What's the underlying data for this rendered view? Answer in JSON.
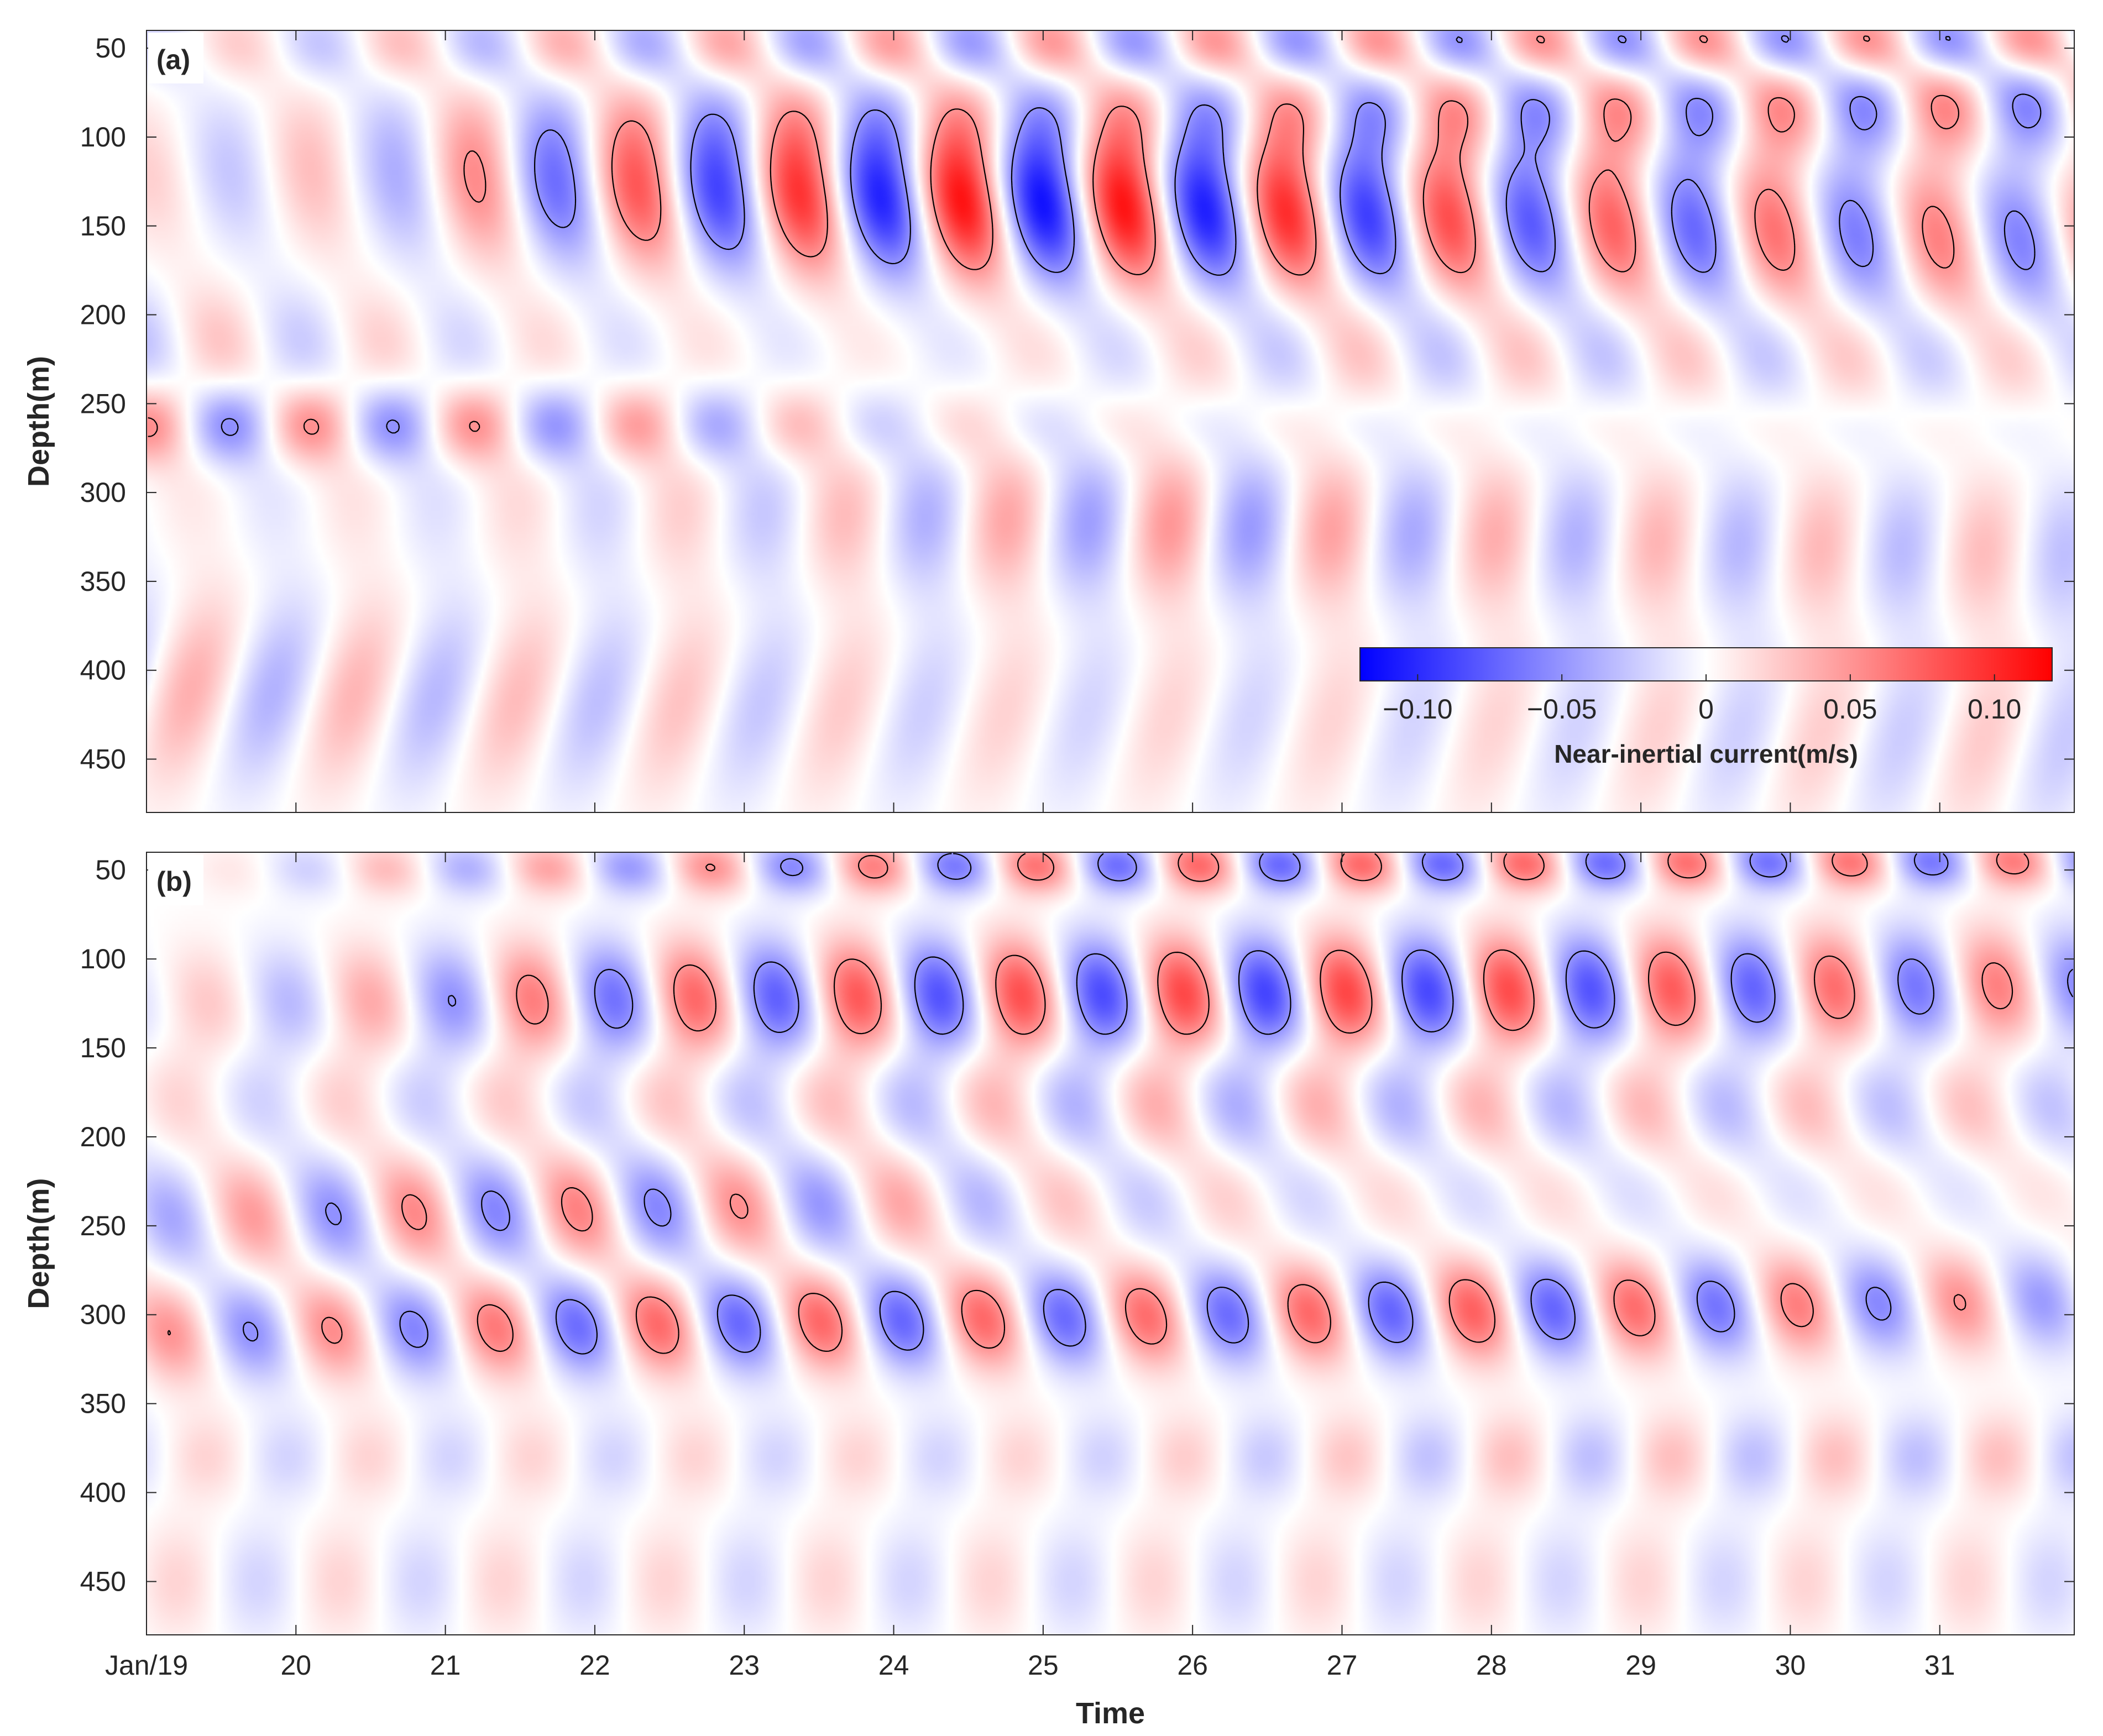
{
  "chart_data": {
    "type": "heatmap",
    "shared": {
      "xlabel": "Time",
      "ylabel": "Depth(m)",
      "x_ticks": [
        {
          "day": 19,
          "label": "Jan/19"
        },
        {
          "day": 20,
          "label": "20"
        },
        {
          "day": 21,
          "label": "21"
        },
        {
          "day": 22,
          "label": "22"
        },
        {
          "day": 23,
          "label": "23"
        },
        {
          "day": 24,
          "label": "24"
        },
        {
          "day": 25,
          "label": "25"
        },
        {
          "day": 26,
          "label": "26"
        },
        {
          "day": 27,
          "label": "27"
        },
        {
          "day": 28,
          "label": "28"
        },
        {
          "day": 29,
          "label": "29"
        },
        {
          "day": 30,
          "label": "30"
        },
        {
          "day": 31,
          "label": "31"
        }
      ],
      "xlim": [
        19,
        31.9
      ],
      "y_ticks": [
        50,
        100,
        150,
        200,
        250,
        300,
        350,
        400,
        450
      ],
      "ylim": [
        40,
        480
      ],
      "y_reversed": true
    },
    "colorbar": {
      "label": "Near-inertial current(m/s)",
      "range": [
        -0.12,
        0.12
      ],
      "ticks": [
        {
          "value": -0.1,
          "label": "−0.10"
        },
        {
          "value": -0.05,
          "label": "−0.05"
        },
        {
          "value": 0,
          "label": "0"
        },
        {
          "value": 0.05,
          "label": "0.05"
        },
        {
          "value": 0.1,
          "label": "0.10"
        }
      ],
      "colors": {
        "negative": "#0000ff",
        "zero": "#ffffff",
        "positive": "#ff0000"
      },
      "placement": "inside panel (a), lower-right"
    },
    "contours": {
      "levels": [
        -0.05,
        0.05
      ],
      "negative_style": "dashed",
      "positive_style": "solid",
      "color": "#000000"
    },
    "panels": [
      {
        "label": "(a)",
        "bands": [
          {
            "depth_start": 120,
            "depth_end": 160,
            "period_days": 1.09,
            "phase_day": 19.0,
            "tilt_days_per_m": 0.0022,
            "thickness_m": 60,
            "amplitudes": [
              {
                "day": 19,
                "value": 0.022
              },
              {
                "day": 20.5,
                "value": 0.03
              },
              {
                "day": 21.5,
                "value": 0.06
              },
              {
                "day": 22.5,
                "value": 0.08
              },
              {
                "day": 23.5,
                "value": 0.095
              },
              {
                "day": 24.5,
                "value": 0.11
              },
              {
                "day": 25.5,
                "value": 0.11
              },
              {
                "day": 26.5,
                "value": 0.1
              },
              {
                "day": 27.5,
                "value": 0.085
              },
              {
                "day": 28.5,
                "value": 0.075
              },
              {
                "day": 29.5,
                "value": 0.07
              },
              {
                "day": 30.5,
                "value": 0.06
              },
              {
                "day": 31.9,
                "value": 0.058
              }
            ]
          },
          {
            "depth_start": 95,
            "depth_end": 80,
            "period_days": 1.09,
            "phase_day": 19.05,
            "tilt_days_per_m": 0.002,
            "thickness_m": 42,
            "amplitudes": [
              {
                "day": 19,
                "value": 0.0
              },
              {
                "day": 20.5,
                "value": 0.01
              },
              {
                "day": 22,
                "value": 0.02
              },
              {
                "day": 23,
                "value": 0.03
              },
              {
                "day": 24.5,
                "value": 0.035
              },
              {
                "day": 26,
                "value": 0.045
              },
              {
                "day": 28,
                "value": 0.055
              },
              {
                "day": 30,
                "value": 0.058
              },
              {
                "day": 31.9,
                "value": 0.062
              }
            ]
          },
          {
            "depth_start": 48,
            "depth_end": 48,
            "period_days": 1.09,
            "phase_day": 19.6,
            "tilt_days_per_m": 0.002,
            "thickness_m": 30,
            "amplitudes": [
              {
                "day": 19,
                "value": 0.02
              },
              {
                "day": 22,
                "value": 0.04
              },
              {
                "day": 24,
                "value": 0.05
              },
              {
                "day": 28,
                "value": 0.06
              },
              {
                "day": 31.9,
                "value": 0.065
              }
            ]
          },
          {
            "depth_start": 262,
            "depth_end": 262,
            "period_days": 1.09,
            "phase_day": 19.0,
            "tilt_days_per_m": 0.0,
            "thickness_m": 32,
            "amplitudes": [
              {
                "day": 19,
                "value": 0.058
              },
              {
                "day": 21.5,
                "value": 0.055
              },
              {
                "day": 22.6,
                "value": 0.048
              },
              {
                "day": 24,
                "value": 0.025
              },
              {
                "day": 26,
                "value": 0.015
              },
              {
                "day": 31.9,
                "value": 0.01
              }
            ]
          },
          {
            "depth_start": 300,
            "depth_end": 335,
            "period_days": 1.09,
            "phase_day": 19.3,
            "tilt_days_per_m": -0.001,
            "thickness_m": 60,
            "amplitudes": [
              {
                "day": 19,
                "value": 0.01
              },
              {
                "day": 21,
                "value": 0.015
              },
              {
                "day": 23,
                "value": 0.025
              },
              {
                "day": 24.5,
                "value": 0.04
              },
              {
                "day": 26,
                "value": 0.05
              },
              {
                "day": 27.5,
                "value": 0.04
              },
              {
                "day": 29,
                "value": 0.035
              },
              {
                "day": 31.9,
                "value": 0.03
              }
            ]
          },
          {
            "depth_start": 215,
            "depth_end": 225,
            "period_days": 1.09,
            "phase_day": 19.5,
            "tilt_days_per_m": 0.002,
            "thickness_m": 45,
            "amplitudes": [
              {
                "day": 19,
                "value": 0.03
              },
              {
                "day": 21,
                "value": 0.02
              },
              {
                "day": 24,
                "value": 0.01
              },
              {
                "day": 27,
                "value": 0.03
              },
              {
                "day": 29,
                "value": 0.03
              },
              {
                "day": 31.9,
                "value": 0.025
              }
            ]
          },
          {
            "depth_start": 410,
            "depth_end": 440,
            "period_days": 1.09,
            "phase_day": 19.3,
            "tilt_days_per_m": -0.003,
            "thickness_m": 75,
            "amplitudes": [
              {
                "day": 19,
                "value": 0.038
              },
              {
                "day": 22,
                "value": 0.03
              },
              {
                "day": 25,
                "value": 0.02
              },
              {
                "day": 28,
                "value": 0.02
              },
              {
                "day": 31.9,
                "value": 0.025
              }
            ]
          }
        ]
      },
      {
        "label": "(b)",
        "bands": [
          {
            "depth_start": 50,
            "depth_end": 45,
            "period_days": 1.09,
            "phase_day": 19.5,
            "tilt_days_per_m": 0.002,
            "thickness_m": 22,
            "amplitudes": [
              {
                "day": 19,
                "value": 0.0
              },
              {
                "day": 20.5,
                "value": 0.03
              },
              {
                "day": 22,
                "value": 0.045
              },
              {
                "day": 24,
                "value": 0.06
              },
              {
                "day": 26,
                "value": 0.07
              },
              {
                "day": 28,
                "value": 0.07
              },
              {
                "day": 31.9,
                "value": 0.06
              }
            ]
          },
          {
            "depth_start": 125,
            "depth_end": 115,
            "period_days": 1.09,
            "phase_day": 19.4,
            "tilt_days_per_m": 0.002,
            "thickness_m": 45,
            "amplitudes": [
              {
                "day": 19,
                "value": 0.02
              },
              {
                "day": 20.5,
                "value": 0.04
              },
              {
                "day": 21.5,
                "value": 0.06
              },
              {
                "day": 22.5,
                "value": 0.07
              },
              {
                "day": 24,
                "value": 0.08
              },
              {
                "day": 26.5,
                "value": 0.088
              },
              {
                "day": 28,
                "value": 0.085
              },
              {
                "day": 29.5,
                "value": 0.075
              },
              {
                "day": 31.9,
                "value": 0.055
              }
            ]
          },
          {
            "depth_start": 245,
            "depth_end": 225,
            "period_days": 1.09,
            "phase_day": 19.7,
            "tilt_days_per_m": 0.0025,
            "thickness_m": 45,
            "amplitudes": [
              {
                "day": 19,
                "value": 0.04
              },
              {
                "day": 20.5,
                "value": 0.055
              },
              {
                "day": 22,
                "value": 0.06
              },
              {
                "day": 23.5,
                "value": 0.05
              },
              {
                "day": 25,
                "value": 0.03
              },
              {
                "day": 27,
                "value": 0.02
              },
              {
                "day": 31.9,
                "value": 0.015
              }
            ]
          },
          {
            "depth_start": 310,
            "depth_end": 292,
            "period_days": 1.09,
            "phase_day": 19.15,
            "tilt_days_per_m": 0.0025,
            "thickness_m": 40,
            "amplitudes": [
              {
                "day": 19,
                "value": 0.05
              },
              {
                "day": 20.5,
                "value": 0.055
              },
              {
                "day": 22,
                "value": 0.07
              },
              {
                "day": 24,
                "value": 0.072
              },
              {
                "day": 26,
                "value": 0.068
              },
              {
                "day": 28,
                "value": 0.075
              },
              {
                "day": 29.5,
                "value": 0.065
              },
              {
                "day": 31.9,
                "value": 0.045
              }
            ]
          },
          {
            "depth_start": 180,
            "depth_end": 185,
            "period_days": 1.09,
            "phase_day": 19.2,
            "tilt_days_per_m": 0.002,
            "thickness_m": 45,
            "amplitudes": [
              {
                "day": 19,
                "value": 0.02
              },
              {
                "day": 23,
                "value": 0.03
              },
              {
                "day": 26,
                "value": 0.04
              },
              {
                "day": 29,
                "value": 0.035
              },
              {
                "day": 31.9,
                "value": 0.03
              }
            ]
          },
          {
            "depth_start": 380,
            "depth_end": 380,
            "period_days": 1.09,
            "phase_day": 19.4,
            "tilt_days_per_m": 0.0,
            "thickness_m": 35,
            "amplitudes": [
              {
                "day": 19,
                "value": 0.02
              },
              {
                "day": 25,
                "value": 0.02
              },
              {
                "day": 28,
                "value": 0.03
              },
              {
                "day": 31.9,
                "value": 0.03
              }
            ]
          },
          {
            "depth_start": 450,
            "depth_end": 450,
            "period_days": 1.09,
            "phase_day": 19.2,
            "tilt_days_per_m": 0.0,
            "thickness_m": 45,
            "amplitudes": [
              {
                "day": 19,
                "value": 0.02
              },
              {
                "day": 31.9,
                "value": 0.02
              }
            ]
          }
        ]
      }
    ]
  }
}
